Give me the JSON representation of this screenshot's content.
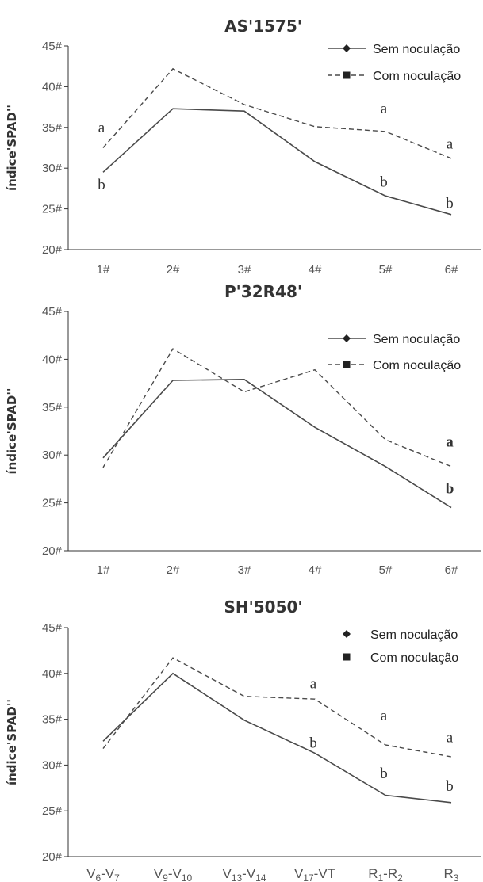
{
  "chart_data": [
    {
      "type": "line",
      "title": "AS'1575'",
      "ylabel": "índice'SPAD''",
      "categories": [
        "1#",
        "2#",
        "3#",
        "4#",
        "5#",
        "6#"
      ],
      "ylim": [
        20,
        45
      ],
      "yticks": [
        "20#",
        "25#",
        "30#",
        "35#",
        "40#",
        "45#"
      ],
      "grid": false,
      "legend_placement": "top-right",
      "legend_style": "lines",
      "series": [
        {
          "name": "Sem  noculação",
          "style": "solid",
          "marker": "diamond",
          "values": [
            29.5,
            37.3,
            37.0,
            30.8,
            26.6,
            24.3
          ]
        },
        {
          "name": "Com  noculação",
          "style": "dashed",
          "marker": "square",
          "values": [
            32.5,
            42.2,
            37.8,
            35.1,
            34.5,
            31.2
          ]
        }
      ],
      "annotations": [
        {
          "text": "a",
          "x_index": 0,
          "y": 35.0,
          "bold": false
        },
        {
          "text": "b",
          "x_index": 0,
          "y": 28.0,
          "bold": false
        },
        {
          "text": "a",
          "x_index": 4,
          "y": 37.3,
          "bold": false
        },
        {
          "text": "b",
          "x_index": 4,
          "y": 28.3,
          "bold": false
        },
        {
          "text": "a",
          "x_index": 5,
          "y": 33.0,
          "bold": false
        },
        {
          "text": "b",
          "x_index": 5,
          "y": 25.7,
          "bold": false
        }
      ]
    },
    {
      "type": "line",
      "title": "P'32R48'",
      "ylabel": "índice'SPAD''",
      "categories": [
        "1#",
        "2#",
        "3#",
        "4#",
        "5#",
        "6#"
      ],
      "ylim": [
        20,
        45
      ],
      "yticks": [
        "20#",
        "25#",
        "30#",
        "35#",
        "40#",
        "45#"
      ],
      "grid": false,
      "legend_placement": "top-right",
      "legend_style": "lines",
      "series": [
        {
          "name": "Sem  noculação",
          "style": "solid",
          "marker": "diamond",
          "values": [
            29.7,
            37.8,
            37.9,
            32.9,
            28.8,
            24.5
          ]
        },
        {
          "name": "Com  noculação",
          "style": "dashed",
          "marker": "square",
          "values": [
            28.7,
            41.1,
            36.6,
            38.9,
            31.6,
            28.8
          ]
        }
      ],
      "annotations": [
        {
          "text": "a",
          "x_index": 5,
          "y": 31.4,
          "bold": true
        },
        {
          "text": "b",
          "x_index": 5,
          "y": 26.5,
          "bold": true
        }
      ]
    },
    {
      "type": "line",
      "title": "SH'5050'",
      "ylabel": "índice'SPAD''",
      "categories": [
        "V6-V7",
        "V9-V10",
        "V13-V14",
        "V17-VT",
        "R1-R2",
        "R3"
      ],
      "category_parts": [
        [
          {
            "t": "V",
            "sub": false
          },
          {
            "t": "6",
            "sub": true
          },
          {
            "t": "-V",
            "sub": false
          },
          {
            "t": "7",
            "sub": true
          }
        ],
        [
          {
            "t": "V",
            "sub": false
          },
          {
            "t": "9",
            "sub": true
          },
          {
            "t": "-V",
            "sub": false
          },
          {
            "t": "10",
            "sub": true
          }
        ],
        [
          {
            "t": "V",
            "sub": false
          },
          {
            "t": "13",
            "sub": true
          },
          {
            "t": "-V",
            "sub": false
          },
          {
            "t": "14",
            "sub": true
          }
        ],
        [
          {
            "t": "V",
            "sub": false
          },
          {
            "t": "17",
            "sub": true
          },
          {
            "t": "-VT",
            "sub": false
          }
        ],
        [
          {
            "t": "R",
            "sub": false
          },
          {
            "t": "1",
            "sub": true
          },
          {
            "t": "-R",
            "sub": false
          },
          {
            "t": "2",
            "sub": true
          }
        ],
        [
          {
            "t": "R",
            "sub": false
          },
          {
            "t": "3",
            "sub": true
          }
        ]
      ],
      "ylim": [
        20,
        45
      ],
      "yticks": [
        "20#",
        "25#",
        "30#",
        "35#",
        "40#",
        "45#"
      ],
      "grid": false,
      "legend_placement": "top-right",
      "legend_style": "markers",
      "series": [
        {
          "name": "Sem  noculação",
          "style": "solid",
          "marker": "diamond",
          "values": [
            32.6,
            40.0,
            34.9,
            31.3,
            26.7,
            25.9
          ]
        },
        {
          "name": "Com  noculação",
          "style": "dashed",
          "marker": "square",
          "values": [
            31.8,
            41.7,
            37.5,
            37.2,
            32.2,
            30.9
          ]
        }
      ],
      "annotations": [
        {
          "text": "a",
          "x_index": 3,
          "y": 38.9,
          "bold": false
        },
        {
          "text": "b",
          "x_index": 3,
          "y": 32.4,
          "bold": false
        },
        {
          "text": "a",
          "x_index": 4,
          "y": 35.4,
          "bold": false
        },
        {
          "text": "b",
          "x_index": 4,
          "y": 29.1,
          "bold": false
        },
        {
          "text": "a",
          "x_index": 5,
          "y": 33.0,
          "bold": false
        },
        {
          "text": "b",
          "x_index": 5,
          "y": 27.7,
          "bold": false
        }
      ]
    }
  ]
}
